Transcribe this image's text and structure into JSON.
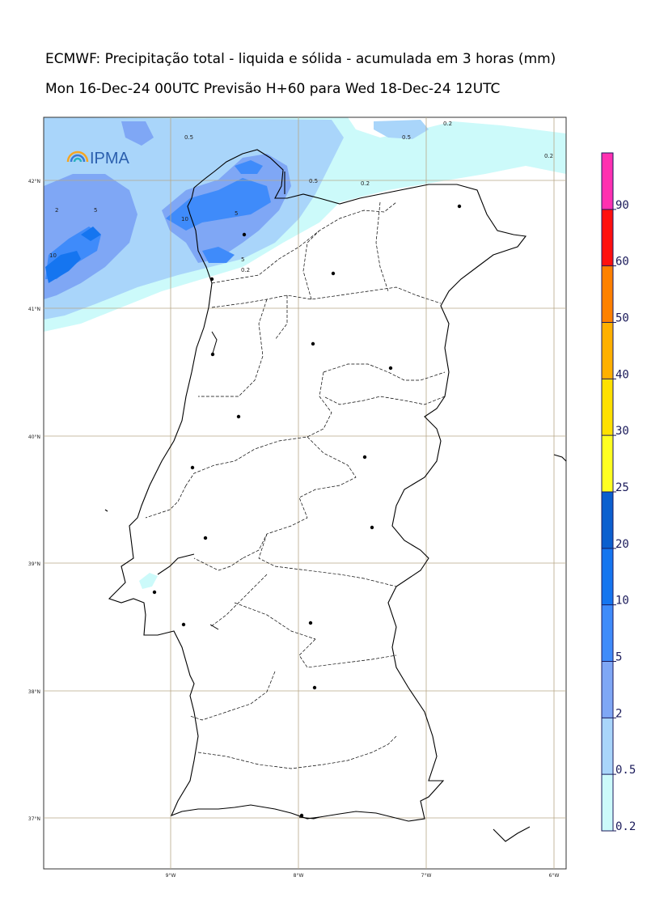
{
  "title_line1": "ECMWF: Precipitação total - liquida e sólida - acumulada em 3 horas (mm)",
  "title_line2": "Mon 16-Dec-24 00UTC Previsão H+60 para Wed 18-Dec-24 12UTC",
  "logo_text": "IPMA",
  "lat_labels": [
    "42°N",
    "41°N",
    "40°N",
    "39°N",
    "38°N",
    "37°N"
  ],
  "lon_labels": [
    "9°W",
    "8°W",
    "7°W",
    "6°W"
  ],
  "contour_labels": [
    "0.2",
    "0.5",
    "2",
    "5",
    "10"
  ],
  "colorbar": {
    "ticks": [
      "0.2",
      "0.5",
      "2",
      "5",
      "10",
      "20",
      "25",
      "30",
      "40",
      "50",
      "60",
      "90"
    ],
    "colors": [
      "#ccfafa",
      "#a9d5fa",
      "#7fa7f5",
      "#3f8bfa",
      "#1575f0",
      "#0b5fcf",
      "#ffff20",
      "#ffe000",
      "#ffb000",
      "#ff8000",
      "#ff1010",
      "#ff30b0"
    ]
  }
}
